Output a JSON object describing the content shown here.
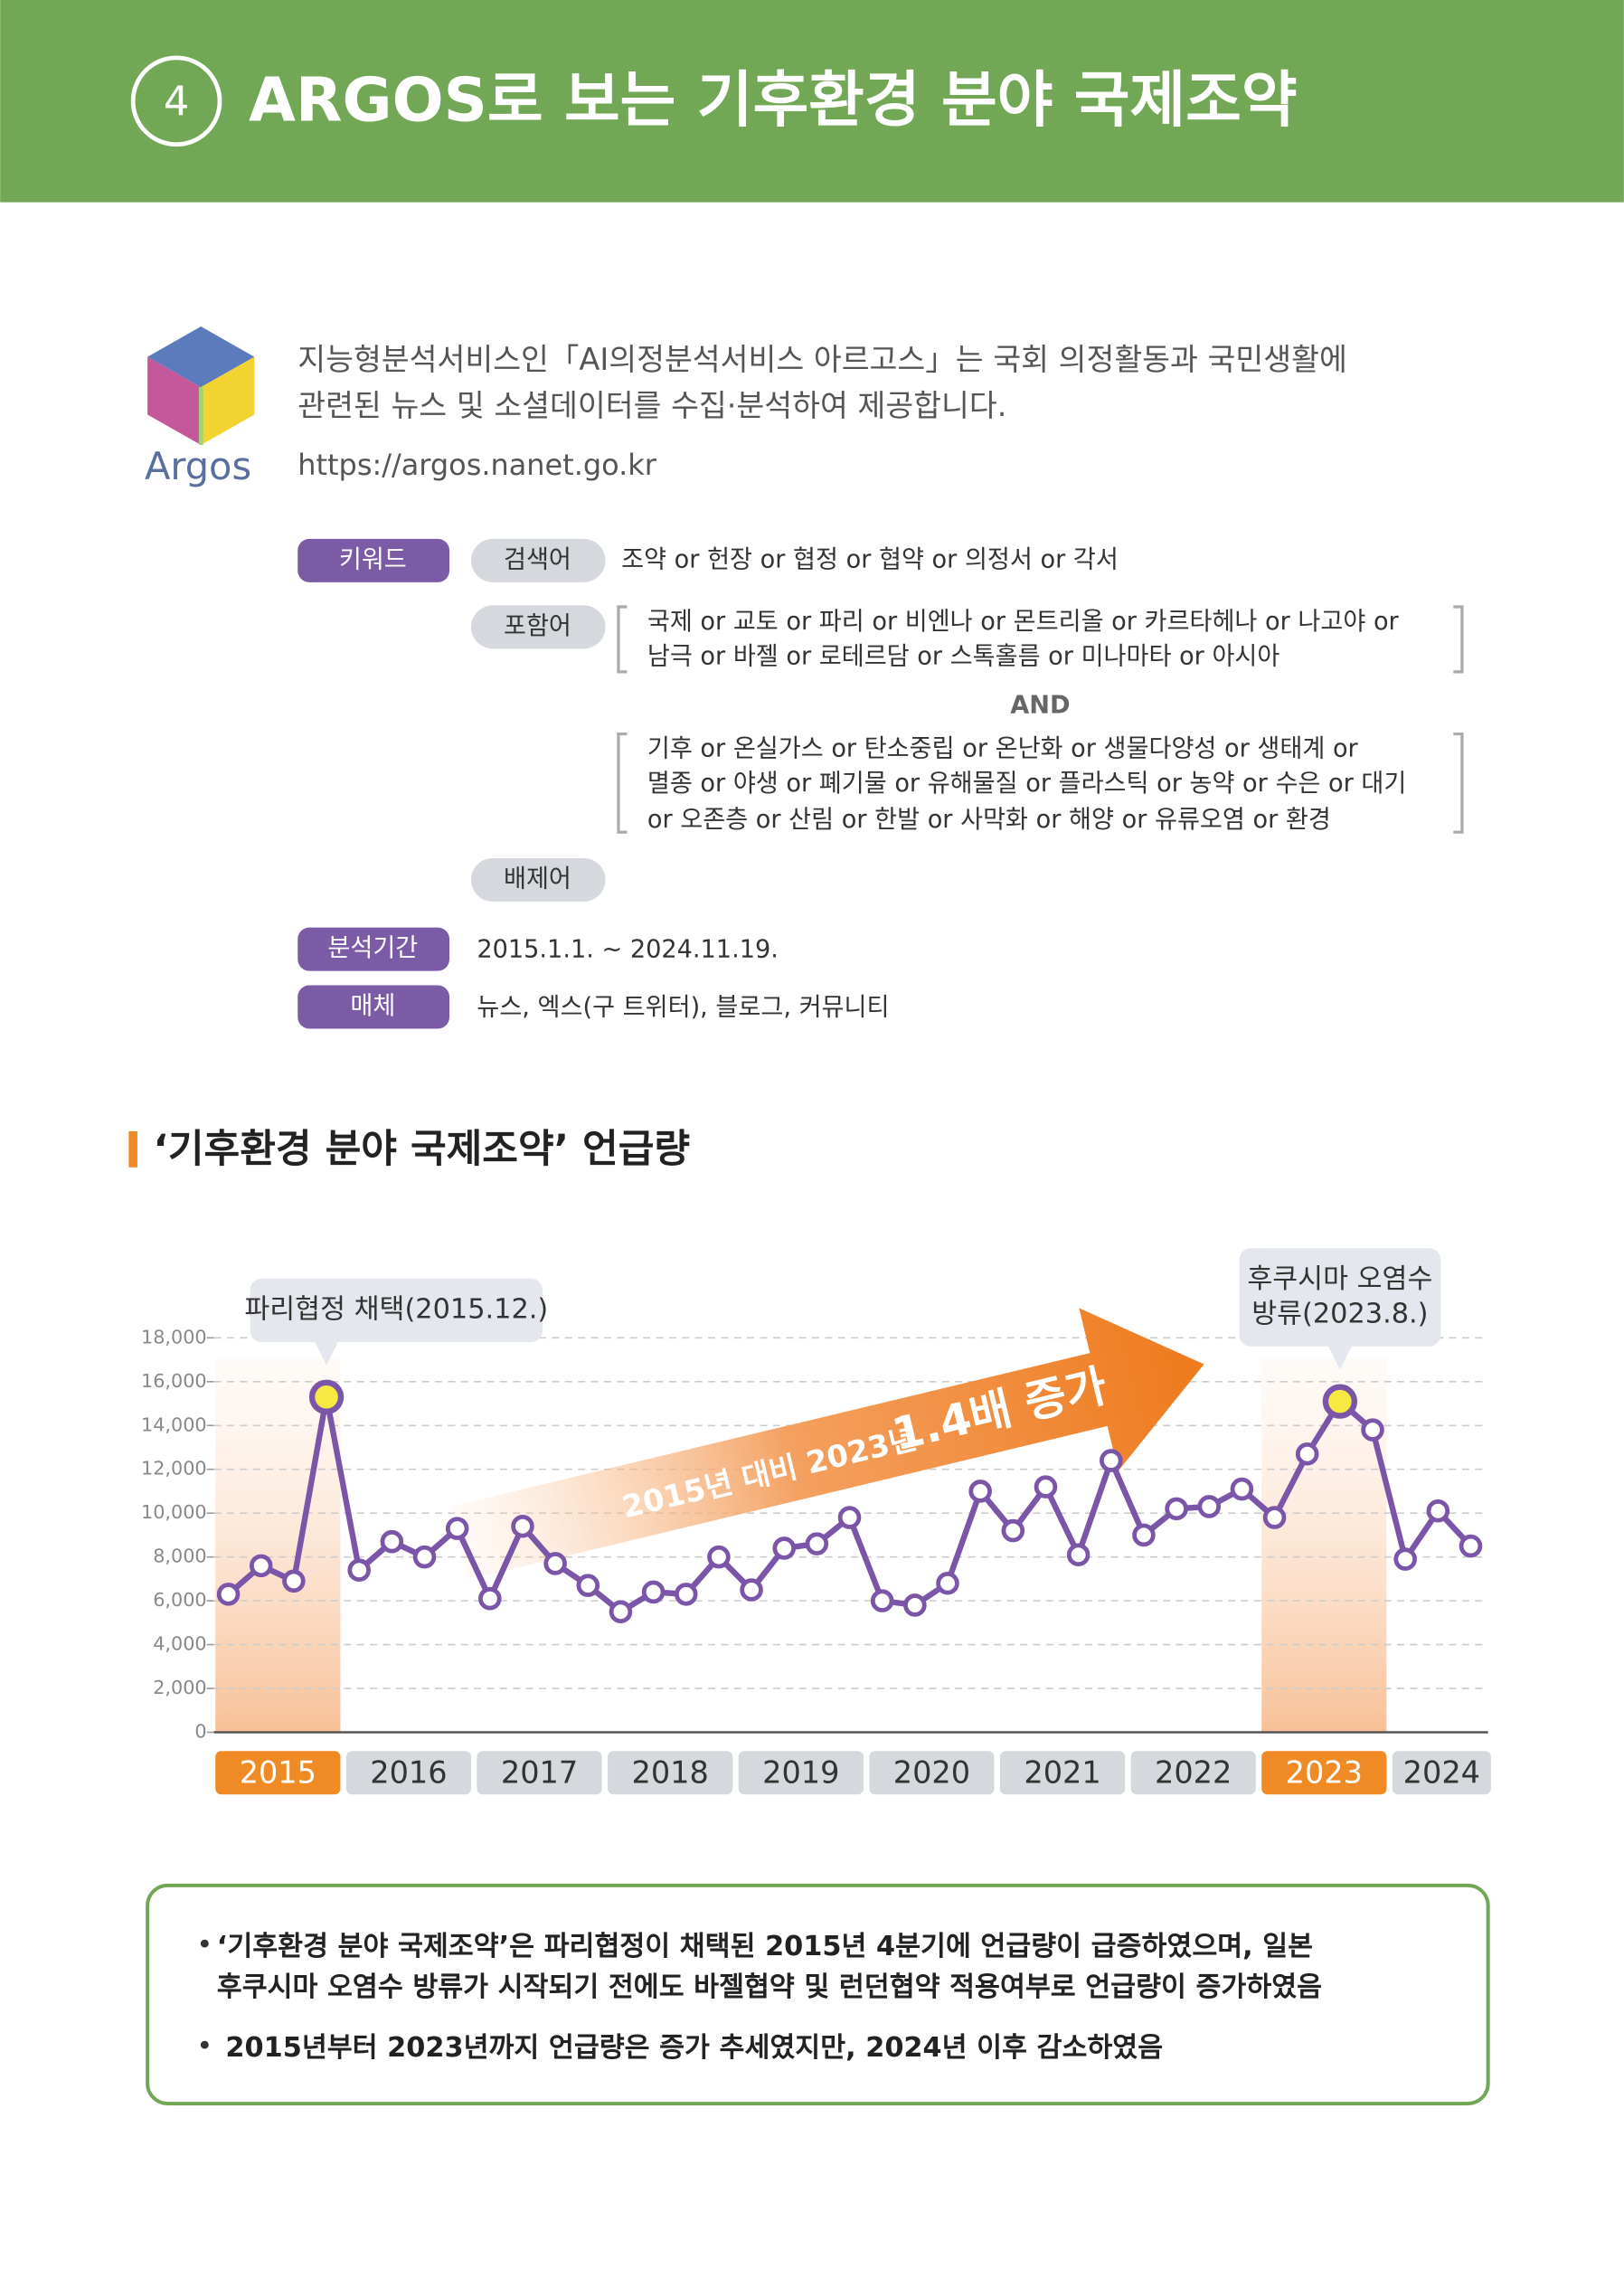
{
  "header": {
    "number": "4",
    "title": "ARGOS로 보는 기후환경 분야 국제조약"
  },
  "info": {
    "logo": "Argos",
    "description": [
      "지능형분석서비스인「AI의정분석서비스 아르고스」는 국회 의정활동과 국민생활에",
      "관련된 뉴스 및 소셜데이터를 수집·분석하여 제공합니다."
    ],
    "url": "https://argos.nanet.go.kr"
  },
  "keywords": {
    "tag": "키워드",
    "search": {
      "label": "검색어",
      "text": "조약 or 헌장 or 협정 or 협약 or 의정서 or 각서"
    },
    "include": {
      "label": "포함어",
      "group1": [
        "국제 or 교토 or 파리 or 비엔나 or 몬트리올 or 카르타헤나 or 나고야 or",
        "남극 or 바젤 or 로테르담 or 스톡홀름 or 미나마타 or 아시아"
      ],
      "and": "AND",
      "group2": [
        "기후  or  온실가스  or  탄소중립  or  온난화  or  생물다양성  or  생태계  or",
        "멸종 or 야생 or 폐기물 or 유해물질 or 플라스틱 or 농약 or 수은 or 대기",
        "or 오존층 or 산림 or 한발 or 사막화 or 해양 or 유류오염 or 환경"
      ]
    },
    "exclude": {
      "label": "배제어"
    }
  },
  "period": {
    "label": "분석기간",
    "text": "2015.1.1. ~ 2024.11.19."
  },
  "media": {
    "label": "매체",
    "text": "뉴스, 엑스(구 트위터), 블로그, 커뮤니티"
  },
  "chart_data": {
    "type": "line",
    "title": "‘기후환경 분야 국제조약’ 언급량",
    "categories": [
      "2015",
      null,
      null,
      null,
      "2016",
      null,
      null,
      null,
      "2017",
      null,
      null,
      null,
      "2018",
      null,
      null,
      null,
      "2019",
      null,
      null,
      null,
      "2020",
      null,
      null,
      null,
      "2021",
      null,
      null,
      null,
      "2022",
      null,
      null,
      null,
      "2023",
      null,
      null,
      null,
      "2024",
      null,
      null
    ],
    "values": [
      6300,
      7600,
      6900,
      15300,
      7400,
      8700,
      8000,
      9300,
      6100,
      9400,
      7700,
      6700,
      5500,
      6400,
      6300,
      8000,
      6500,
      8400,
      8600,
      9800,
      6000,
      5800,
      6800,
      11000,
      9200,
      11200,
      8100,
      12400,
      9000,
      10200,
      10300,
      11100,
      9800,
      12700,
      15100,
      13800,
      7900,
      10100,
      8500
    ],
    "color": "#7b55a8",
    "ylim": [
      0,
      18000
    ],
    "yticks": [
      0,
      {
        "value": 2000,
        "label": "2,000"
      },
      {
        "value": 4000,
        "label": "4,000"
      },
      {
        "value": 6000,
        "label": "6,000"
      },
      {
        "value": 8000,
        "label": "8,000"
      },
      {
        "value": 10000,
        "label": "10,000"
      },
      {
        "value": 12000,
        "label": "12,000"
      },
      {
        "value": 14000,
        "label": "14,000"
      },
      {
        "value": 16000,
        "label": "16,000"
      },
      {
        "value": 18000,
        "label": "18,000"
      }
    ],
    "grid": true,
    "highlight": [
      "2015",
      "2023"
    ],
    "highlight_color": "#f08a24",
    "annotations": [
      [
        "파리협정 채택(2015.12.)"
      ],
      [
        "후쿠시마 오염수",
        "방류(2023.8.)"
      ]
    ],
    "trend_label": [
      "2015년 대비 2023년",
      "1.4배 증가"
    ]
  },
  "summary": [
    [
      "‘기후환경 분야 국제조약’은 파리협정이 채택된 2015년 4분기에 언급량이 급증하였으며, 일본",
      "후쿠시마 오염수 방류가 시작되기 전에도 바젤협약 및 런던협약 적용여부로 언급량이 증가하였음"
    ],
    [
      "2015년부터 2023년까지 언급량은 증가 추세였지만, 2024년 이후 감소하였음"
    ]
  ]
}
